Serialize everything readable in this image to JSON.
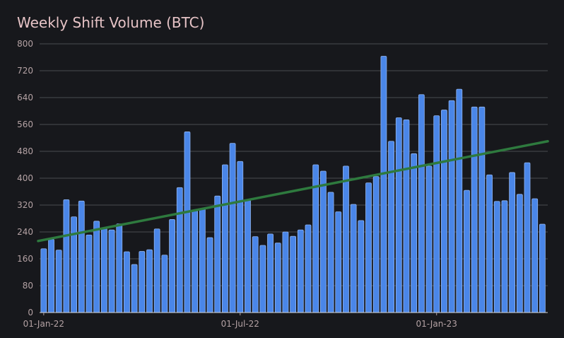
{
  "chart_data": {
    "type": "bar",
    "title": "Weekly Shift Volume (BTC)",
    "xlabel": "",
    "ylabel": "",
    "ylim": [
      0,
      800
    ],
    "yticks": [
      0,
      80,
      160,
      240,
      320,
      400,
      480,
      560,
      640,
      720,
      800
    ],
    "xtick_labels": [
      {
        "label": "01-Jan-22",
        "index": 0
      },
      {
        "label": "01-Jul-22",
        "index": 26
      },
      {
        "label": "01-Jan-23",
        "index": 52
      }
    ],
    "grid": true,
    "colors": {
      "bar": "#4a86e8",
      "bar_edge": "#8fb4f0",
      "trend": "#2e7a3e",
      "grid": "#4a4b50"
    },
    "series": [
      {
        "type": "bar",
        "values": [
          190,
          218,
          186,
          336,
          285,
          332,
          231,
          272,
          250,
          246,
          264,
          181,
          143,
          182,
          187,
          249,
          171,
          277,
          372,
          538,
          303,
          310,
          223,
          347,
          440,
          504,
          450,
          336,
          226,
          200,
          234,
          207,
          240,
          227,
          246,
          261,
          440,
          421,
          358,
          300,
          436,
          322,
          274,
          386,
          405,
          763,
          510,
          580,
          574,
          473,
          649,
          436,
          586,
          603,
          631,
          665,
          364,
          612,
          612,
          410,
          331,
          333,
          417,
          352,
          446,
          339,
          263
        ]
      },
      {
        "type": "line",
        "values_start": 213,
        "values_end": 510
      }
    ]
  }
}
